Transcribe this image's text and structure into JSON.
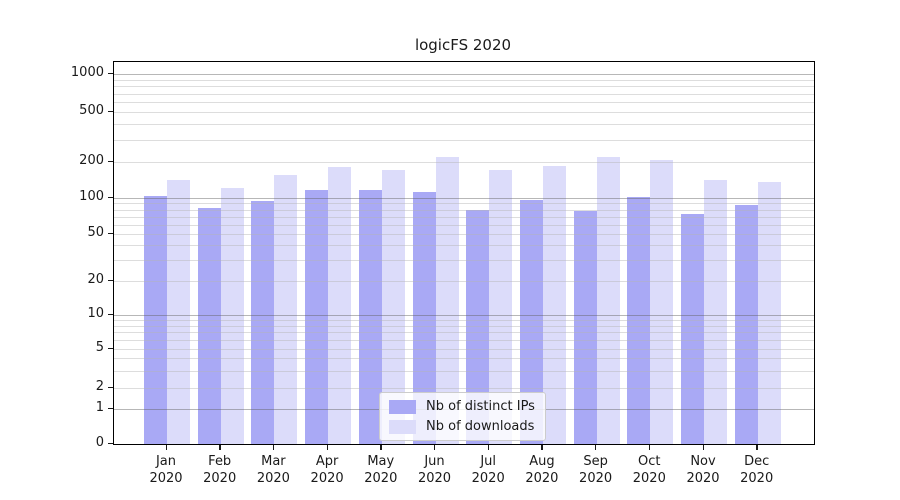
{
  "chart_data": {
    "type": "bar",
    "title": "logicFS 2020",
    "categories": [
      "Jan",
      "Feb",
      "Mar",
      "Apr",
      "May",
      "Jun",
      "Jul",
      "Aug",
      "Sep",
      "Oct",
      "Nov",
      "Dec"
    ],
    "year_label": "2020",
    "series": [
      {
        "name": "Nb of distinct IPs",
        "color": "#a9a9f5",
        "values": [
          104,
          82,
          94,
          117,
          117,
          113,
          79,
          96,
          78,
          102,
          73,
          88
        ]
      },
      {
        "name": "Nb of downloads",
        "color": "#dcdcfa",
        "values": [
          141,
          122,
          156,
          183,
          170,
          220,
          173,
          186,
          219,
          207,
          141,
          136
        ]
      }
    ],
    "yticks": [
      0,
      1,
      2,
      5,
      10,
      20,
      50,
      100,
      200,
      500,
      1000
    ],
    "yscale": "symlog",
    "ylim": [
      0,
      1000
    ],
    "grid": "horizontal major+minor",
    "legend_position": "lower center"
  }
}
